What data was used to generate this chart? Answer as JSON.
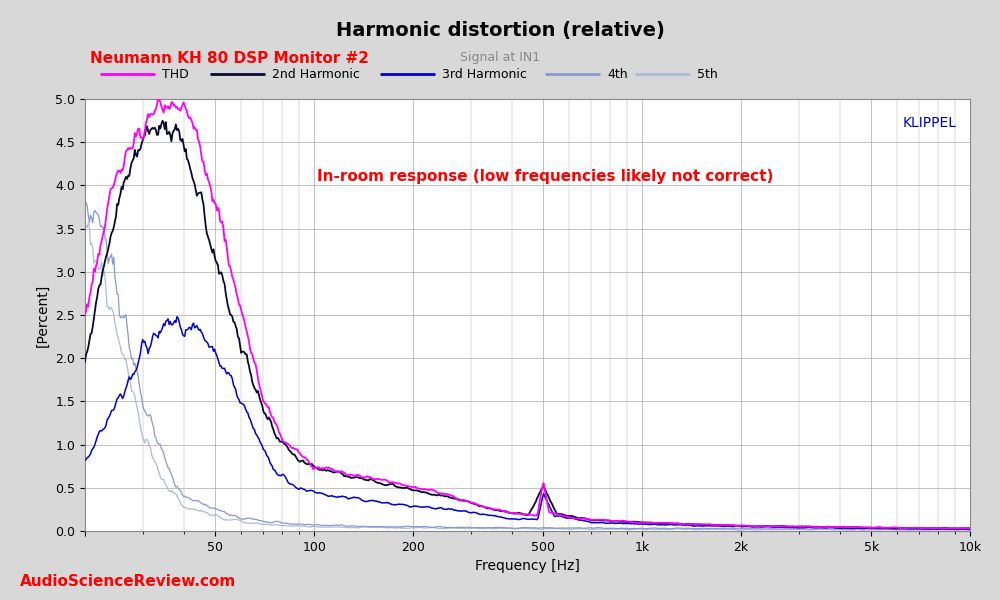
{
  "title": "Harmonic distortion (relative)",
  "subtitle_left": "Neumann KH 80 DSP Monitor #2",
  "subtitle_right": "Signal at IN1",
  "xlabel": "Frequency [Hz]",
  "ylabel": "[Percent]",
  "watermark": "KLIPPEL",
  "annotation": "In-room response (low frequencies likely not correct)",
  "brand": "AudioScienceReview.com",
  "ylim": [
    0.0,
    5.0
  ],
  "xlim": [
    20,
    10000
  ],
  "yticks": [
    0.0,
    0.5,
    1.0,
    1.5,
    2.0,
    2.5,
    3.0,
    3.5,
    4.0,
    4.5,
    5.0
  ],
  "xticks": [
    20,
    50,
    100,
    200,
    500,
    1000,
    2000,
    5000,
    10000
  ],
  "xtick_labels": [
    "",
    "50",
    "100",
    "200",
    "500",
    "1k",
    "2k",
    "5k",
    "10k"
  ],
  "legend": [
    "THD",
    "2nd Harmonic",
    "3rd Harmonic",
    "4th",
    "5th"
  ],
  "colors": {
    "THD": "#FF00FF",
    "2nd": "#0A0A30",
    "3rd": "#0000CC",
    "4th": "#8899CC",
    "5th": "#AABBDD"
  },
  "title_color": "#000000",
  "subtitle_left_color": "#FF0000",
  "subtitle_right_color": "#888888",
  "annotation_color": "#FF0000",
  "brand_color": "#FF0000",
  "watermark_color": "#0000CC",
  "bg_color": "#D8D8D8",
  "plot_bg_color": "#FFFFFF",
  "grid_color": "#AAAAAA"
}
